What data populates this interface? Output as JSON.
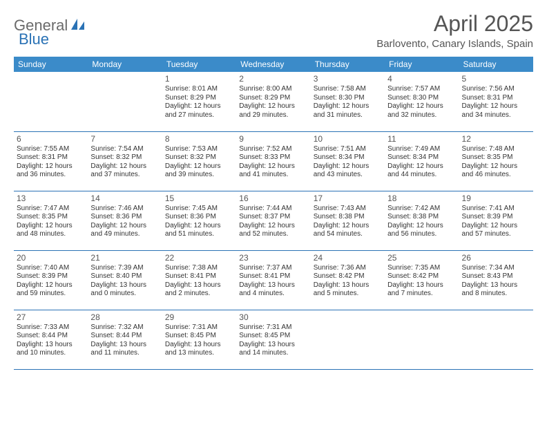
{
  "logo": {
    "part1": "General",
    "part2": "Blue"
  },
  "title": "April 2025",
  "subtitle": "Barlovento, Canary Islands, Spain",
  "colors": {
    "header_bg": "#3b8bc9",
    "header_text": "#ffffff",
    "row_border": "#2a72b5",
    "title_color": "#555555",
    "body_text": "#333333",
    "logo_gray": "#6a6a6a",
    "logo_blue": "#2a72b5",
    "page_bg": "#ffffff"
  },
  "typography": {
    "title_fontsize": 32,
    "subtitle_fontsize": 15,
    "dow_fontsize": 12,
    "daynum_fontsize": 12,
    "body_fontsize": 10
  },
  "day_headers": [
    "Sunday",
    "Monday",
    "Tuesday",
    "Wednesday",
    "Thursday",
    "Friday",
    "Saturday"
  ],
  "weeks": [
    [
      null,
      null,
      {
        "n": "1",
        "sr": "8:01 AM",
        "ss": "8:29 PM",
        "dl": "12 hours and 27 minutes."
      },
      {
        "n": "2",
        "sr": "8:00 AM",
        "ss": "8:29 PM",
        "dl": "12 hours and 29 minutes."
      },
      {
        "n": "3",
        "sr": "7:58 AM",
        "ss": "8:30 PM",
        "dl": "12 hours and 31 minutes."
      },
      {
        "n": "4",
        "sr": "7:57 AM",
        "ss": "8:30 PM",
        "dl": "12 hours and 32 minutes."
      },
      {
        "n": "5",
        "sr": "7:56 AM",
        "ss": "8:31 PM",
        "dl": "12 hours and 34 minutes."
      }
    ],
    [
      {
        "n": "6",
        "sr": "7:55 AM",
        "ss": "8:31 PM",
        "dl": "12 hours and 36 minutes."
      },
      {
        "n": "7",
        "sr": "7:54 AM",
        "ss": "8:32 PM",
        "dl": "12 hours and 37 minutes."
      },
      {
        "n": "8",
        "sr": "7:53 AM",
        "ss": "8:32 PM",
        "dl": "12 hours and 39 minutes."
      },
      {
        "n": "9",
        "sr": "7:52 AM",
        "ss": "8:33 PM",
        "dl": "12 hours and 41 minutes."
      },
      {
        "n": "10",
        "sr": "7:51 AM",
        "ss": "8:34 PM",
        "dl": "12 hours and 43 minutes."
      },
      {
        "n": "11",
        "sr": "7:49 AM",
        "ss": "8:34 PM",
        "dl": "12 hours and 44 minutes."
      },
      {
        "n": "12",
        "sr": "7:48 AM",
        "ss": "8:35 PM",
        "dl": "12 hours and 46 minutes."
      }
    ],
    [
      {
        "n": "13",
        "sr": "7:47 AM",
        "ss": "8:35 PM",
        "dl": "12 hours and 48 minutes."
      },
      {
        "n": "14",
        "sr": "7:46 AM",
        "ss": "8:36 PM",
        "dl": "12 hours and 49 minutes."
      },
      {
        "n": "15",
        "sr": "7:45 AM",
        "ss": "8:36 PM",
        "dl": "12 hours and 51 minutes."
      },
      {
        "n": "16",
        "sr": "7:44 AM",
        "ss": "8:37 PM",
        "dl": "12 hours and 52 minutes."
      },
      {
        "n": "17",
        "sr": "7:43 AM",
        "ss": "8:38 PM",
        "dl": "12 hours and 54 minutes."
      },
      {
        "n": "18",
        "sr": "7:42 AM",
        "ss": "8:38 PM",
        "dl": "12 hours and 56 minutes."
      },
      {
        "n": "19",
        "sr": "7:41 AM",
        "ss": "8:39 PM",
        "dl": "12 hours and 57 minutes."
      }
    ],
    [
      {
        "n": "20",
        "sr": "7:40 AM",
        "ss": "8:39 PM",
        "dl": "12 hours and 59 minutes."
      },
      {
        "n": "21",
        "sr": "7:39 AM",
        "ss": "8:40 PM",
        "dl": "13 hours and 0 minutes."
      },
      {
        "n": "22",
        "sr": "7:38 AM",
        "ss": "8:41 PM",
        "dl": "13 hours and 2 minutes."
      },
      {
        "n": "23",
        "sr": "7:37 AM",
        "ss": "8:41 PM",
        "dl": "13 hours and 4 minutes."
      },
      {
        "n": "24",
        "sr": "7:36 AM",
        "ss": "8:42 PM",
        "dl": "13 hours and 5 minutes."
      },
      {
        "n": "25",
        "sr": "7:35 AM",
        "ss": "8:42 PM",
        "dl": "13 hours and 7 minutes."
      },
      {
        "n": "26",
        "sr": "7:34 AM",
        "ss": "8:43 PM",
        "dl": "13 hours and 8 minutes."
      }
    ],
    [
      {
        "n": "27",
        "sr": "7:33 AM",
        "ss": "8:44 PM",
        "dl": "13 hours and 10 minutes."
      },
      {
        "n": "28",
        "sr": "7:32 AM",
        "ss": "8:44 PM",
        "dl": "13 hours and 11 minutes."
      },
      {
        "n": "29",
        "sr": "7:31 AM",
        "ss": "8:45 PM",
        "dl": "13 hours and 13 minutes."
      },
      {
        "n": "30",
        "sr": "7:31 AM",
        "ss": "8:45 PM",
        "dl": "13 hours and 14 minutes."
      },
      null,
      null,
      null
    ]
  ],
  "labels": {
    "sunrise": "Sunrise:",
    "sunset": "Sunset:",
    "daylight": "Daylight:"
  }
}
